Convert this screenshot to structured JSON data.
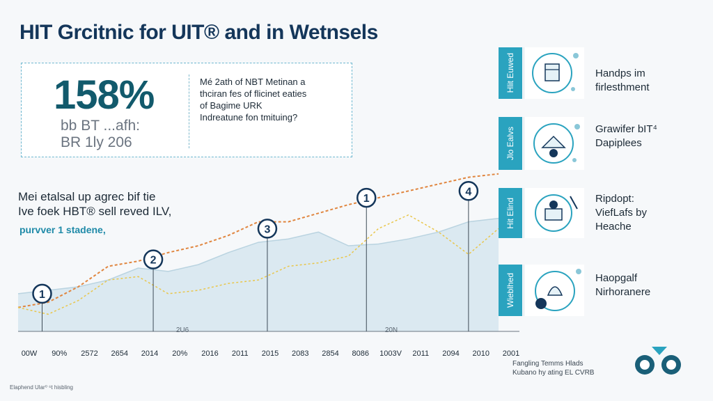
{
  "title": "HIT Grcitnic for UIT® and in  Wetnsels",
  "stat": {
    "value": "158%",
    "sub1": "bb BT ...afh:",
    "sub2": "BR 1ly 206",
    "desc": [
      "Mé 2ath of NBT Metinan a",
      "thciran fes of flicinet eaties",
      "of Bagime URK",
      "Indreatune fon tmituing?"
    ]
  },
  "left_note": {
    "line1": "Mei etalsal up agrec bif tie",
    "line2": "Ive foek HBT® sell reved ILV,",
    "accent": "purvver 1 stadene,"
  },
  "chart_data": {
    "type": "area",
    "x": [
      "00W",
      "90%",
      "2572",
      "2654",
      "2014",
      "20%",
      "2016",
      "2011",
      "2015",
      "2083",
      "2854",
      "8086",
      "1003V",
      "2011",
      "2094",
      "2010",
      "2001"
    ],
    "series": [
      {
        "values": [
          22,
          24,
          26,
          30,
          37,
          35,
          39,
          46,
          52,
          54,
          58,
          50,
          51,
          54,
          58,
          64,
          66
        ]
      },
      {
        "values": [
          14,
          17,
          26,
          38,
          41,
          46,
          50,
          56,
          64,
          64,
          69,
          74,
          78,
          82,
          86,
          90,
          92
        ]
      },
      {
        "values": [
          14,
          10,
          18,
          30,
          32,
          22,
          24,
          28,
          30,
          38,
          40,
          44,
          60,
          68,
          58,
          45,
          60
        ]
      }
    ],
    "markers": [
      {
        "label": "1",
        "x_index": 0.8,
        "y": 22
      },
      {
        "label": "2",
        "x_index": 4.5,
        "y": 42
      },
      {
        "label": "3",
        "x_index": 8.3,
        "y": 60
      },
      {
        "label": "1",
        "x_index": 11.6,
        "y": 78
      },
      {
        "label": "4",
        "x_index": 15.0,
        "y": 82
      }
    ],
    "axis_notes": [
      "2U6",
      "20N"
    ],
    "ylim": [
      0,
      100
    ]
  },
  "panels": [
    {
      "tab": "Hlit Euwed",
      "label": [
        "Handps im",
        "firlesthment"
      ]
    },
    {
      "tab": "Jlo Ealvs",
      "label": [
        "Grawifer bIT⁴",
        "Dapiplees"
      ]
    },
    {
      "tab": "Hit Elind",
      "label": [
        "Ripdopt:",
        "ViefLafs by",
        "Heache"
      ]
    },
    {
      "tab": "Wieblhed",
      "label": [
        "Haopgalf",
        "Nirhoranere"
      ]
    }
  ],
  "footer": {
    "line1": "Fangling Temms Hlads",
    "line2": "Kubano hy ating EL CVRB"
  },
  "footnote": "Elaphend Ular⁰ ⁶t hisbling",
  "colors": {
    "accent": "#2aa3bf",
    "area": "#d6e6ef",
    "orange": "#e0853e",
    "yellow": "#e9c64a",
    "navy": "#14365a"
  }
}
